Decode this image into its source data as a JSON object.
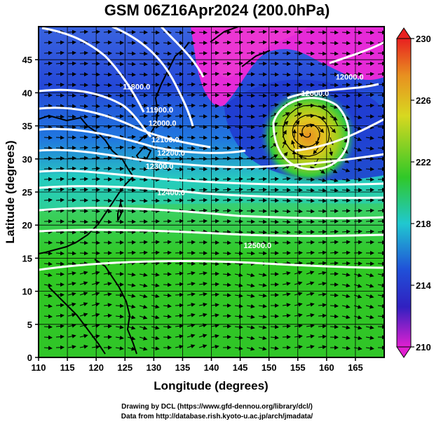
{
  "title": "GSM 06Z16Apr2024 (200.0hPa)",
  "map": {
    "xlabel": "Longitude (degrees)",
    "ylabel": "Latitude (degrees)",
    "xlim": [
      110,
      170
    ],
    "ylim": [
      0,
      50
    ],
    "xticks": [
      "110",
      "115",
      "120",
      "125",
      "130",
      "135",
      "140",
      "145",
      "150",
      "155",
      "160",
      "165"
    ],
    "yticks": [
      "0",
      "5",
      "10",
      "15",
      "20",
      "25",
      "30",
      "35",
      "40",
      "45"
    ],
    "grid": true,
    "contour_labels": [
      {
        "text": "11800.0",
        "lon": 127,
        "lat": 40.5
      },
      {
        "text": "11900.0",
        "lon": 131,
        "lat": 37
      },
      {
        "text": "12000.0",
        "lon": 131.5,
        "lat": 35
      },
      {
        "text": "12100.0",
        "lon": 132,
        "lat": 32.5
      },
      {
        "text": "12200.0",
        "lon": 133,
        "lat": 30.5
      },
      {
        "text": "12300.0",
        "lon": 131,
        "lat": 28.5
      },
      {
        "text": "12400.0",
        "lon": 133,
        "lat": 24.5
      },
      {
        "text": "12500.0",
        "lon": 148,
        "lat": 16.5
      },
      {
        "text": "12000.0",
        "lon": 164,
        "lat": 42
      },
      {
        "text": "12000.0",
        "lon": 158,
        "lat": 39.5
      }
    ]
  },
  "colorbar": {
    "ticks": [
      "230",
      "226",
      "222",
      "218",
      "214",
      "210"
    ],
    "range": [
      210,
      230
    ]
  },
  "colors": {
    "magenta": "#e62ad8",
    "blue": "#1733cc",
    "cyan": "#20d6c8",
    "green": "#26c41c",
    "yellow": "#e0d020",
    "orange": "#e88420"
  },
  "credits": {
    "line1": "Drawing by DCL (https://www.gfd-dennou.org/library/dcl/)",
    "line2": "Data from http://database.rish.kyoto-u.ac.jp/arch/jmadata/"
  }
}
